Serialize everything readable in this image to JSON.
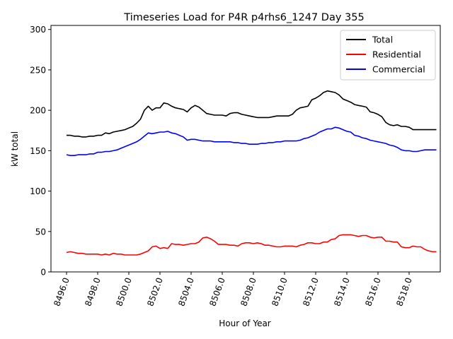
{
  "chart_data": {
    "type": "line",
    "title": "Timeseries Load for P4R p4rhs6_1247  Day 355",
    "xlabel": "Hour of Year",
    "ylabel": "kW total",
    "xlim": [
      8495.0,
      8520.0
    ],
    "ylim": [
      0,
      305
    ],
    "xticks": [
      8496.0,
      8498.0,
      8500.0,
      8502.0,
      8504.0,
      8506.0,
      8508.0,
      8510.0,
      8512.0,
      8514.0,
      8516.0,
      8518.0
    ],
    "xtick_labels": [
      "8496.0",
      "8498.0",
      "8500.0",
      "8502.0",
      "8504.0",
      "8506.0",
      "8508.0",
      "8510.0",
      "8512.0",
      "8514.0",
      "8516.0",
      "8518.0"
    ],
    "yticks": [
      0,
      50,
      100,
      150,
      200,
      250,
      300
    ],
    "ytick_labels": [
      "0",
      "50",
      "100",
      "150",
      "200",
      "250",
      "300"
    ],
    "grid": false,
    "legend_position": "top-right",
    "x": [
      8496.0,
      8496.25,
      8496.5,
      8496.75,
      8497.0,
      8497.25,
      8497.5,
      8497.75,
      8498.0,
      8498.25,
      8498.5,
      8498.75,
      8499.0,
      8499.25,
      8499.5,
      8499.75,
      8500.0,
      8500.25,
      8500.5,
      8500.75,
      8501.0,
      8501.25,
      8501.5,
      8501.75,
      8502.0,
      8502.25,
      8502.5,
      8502.75,
      8503.0,
      8503.25,
      8503.5,
      8503.75,
      8504.0,
      8504.25,
      8504.5,
      8504.75,
      8505.0,
      8505.25,
      8505.5,
      8505.75,
      8506.0,
      8506.25,
      8506.5,
      8506.75,
      8507.0,
      8507.25,
      8507.5,
      8507.75,
      8508.0,
      8508.25,
      8508.5,
      8508.75,
      8509.0,
      8509.25,
      8509.5,
      8509.75,
      8510.0,
      8510.25,
      8510.5,
      8510.75,
      8511.0,
      8511.25,
      8511.5,
      8511.75,
      8512.0,
      8512.25,
      8512.5,
      8512.75,
      8513.0,
      8513.25,
      8513.5,
      8513.75,
      8514.0,
      8514.25,
      8514.5,
      8514.75,
      8515.0,
      8515.25,
      8515.5,
      8515.75,
      8516.0,
      8516.25,
      8516.5,
      8516.75,
      8517.0,
      8517.25,
      8517.5,
      8517.75,
      8518.0,
      8518.25,
      8518.5,
      8518.75,
      8519.0,
      8519.25,
      8519.5,
      8519.75
    ],
    "series": [
      {
        "name": "Total",
        "color": "#000000",
        "values": [
          169,
          169,
          168,
          168,
          167,
          167,
          168,
          168,
          169,
          169,
          172,
          171,
          173,
          174,
          175,
          176,
          178,
          180,
          184,
          189,
          200,
          205,
          200,
          203,
          203,
          209,
          208,
          205,
          203,
          202,
          201,
          198,
          203,
          206,
          204,
          200,
          196,
          195,
          194,
          194,
          194,
          193,
          196,
          197,
          197,
          195,
          194,
          193,
          192,
          191,
          191,
          191,
          191,
          192,
          193,
          193,
          193,
          193,
          195,
          200,
          203,
          204,
          205,
          213,
          215,
          218,
          222,
          224,
          223,
          222,
          219,
          214,
          212,
          210,
          207,
          206,
          205,
          204,
          198,
          197,
          195,
          192,
          185,
          182,
          181,
          182,
          180,
          180,
          179,
          176,
          176,
          176,
          176,
          176,
          176,
          176
        ]
      },
      {
        "name": "Residential",
        "color": "#ff0000",
        "values": [
          24,
          25,
          24,
          23,
          23,
          22,
          22,
          22,
          22,
          21,
          22,
          21,
          23,
          22,
          22,
          21,
          21,
          21,
          21,
          22,
          24,
          26,
          31,
          32,
          29,
          30,
          29,
          35,
          34,
          34,
          33,
          34,
          35,
          35,
          37,
          42,
          43,
          41,
          38,
          34,
          34,
          34,
          33,
          33,
          32,
          35,
          36,
          36,
          35,
          36,
          35,
          33,
          33,
          32,
          31,
          31,
          32,
          32,
          32,
          31,
          33,
          34,
          36,
          36,
          35,
          35,
          37,
          37,
          40,
          41,
          45,
          46,
          46,
          46,
          45,
          44,
          45,
          45,
          43,
          42,
          43,
          43,
          38,
          38,
          37,
          37,
          31,
          30,
          30,
          32,
          31,
          31,
          28,
          26,
          25,
          25
        ]
      },
      {
        "name": "Commercial",
        "color": "#0000ff",
        "values": [
          145,
          144,
          144,
          145,
          145,
          145,
          146,
          146,
          148,
          148,
          149,
          149,
          150,
          151,
          153,
          155,
          157,
          159,
          161,
          164,
          168,
          172,
          171,
          172,
          173,
          173,
          174,
          172,
          171,
          169,
          167,
          163,
          164,
          164,
          163,
          162,
          162,
          162,
          161,
          161,
          161,
          161,
          161,
          160,
          160,
          159,
          159,
          158,
          158,
          158,
          159,
          159,
          160,
          160,
          161,
          161,
          162,
          162,
          162,
          162,
          163,
          165,
          166,
          168,
          170,
          173,
          175,
          177,
          177,
          179,
          178,
          176,
          174,
          173,
          169,
          168,
          166,
          165,
          163,
          162,
          161,
          160,
          159,
          157,
          156,
          154,
          151,
          150,
          150,
          149,
          149,
          150,
          151,
          151,
          151,
          151
        ]
      }
    ]
  }
}
